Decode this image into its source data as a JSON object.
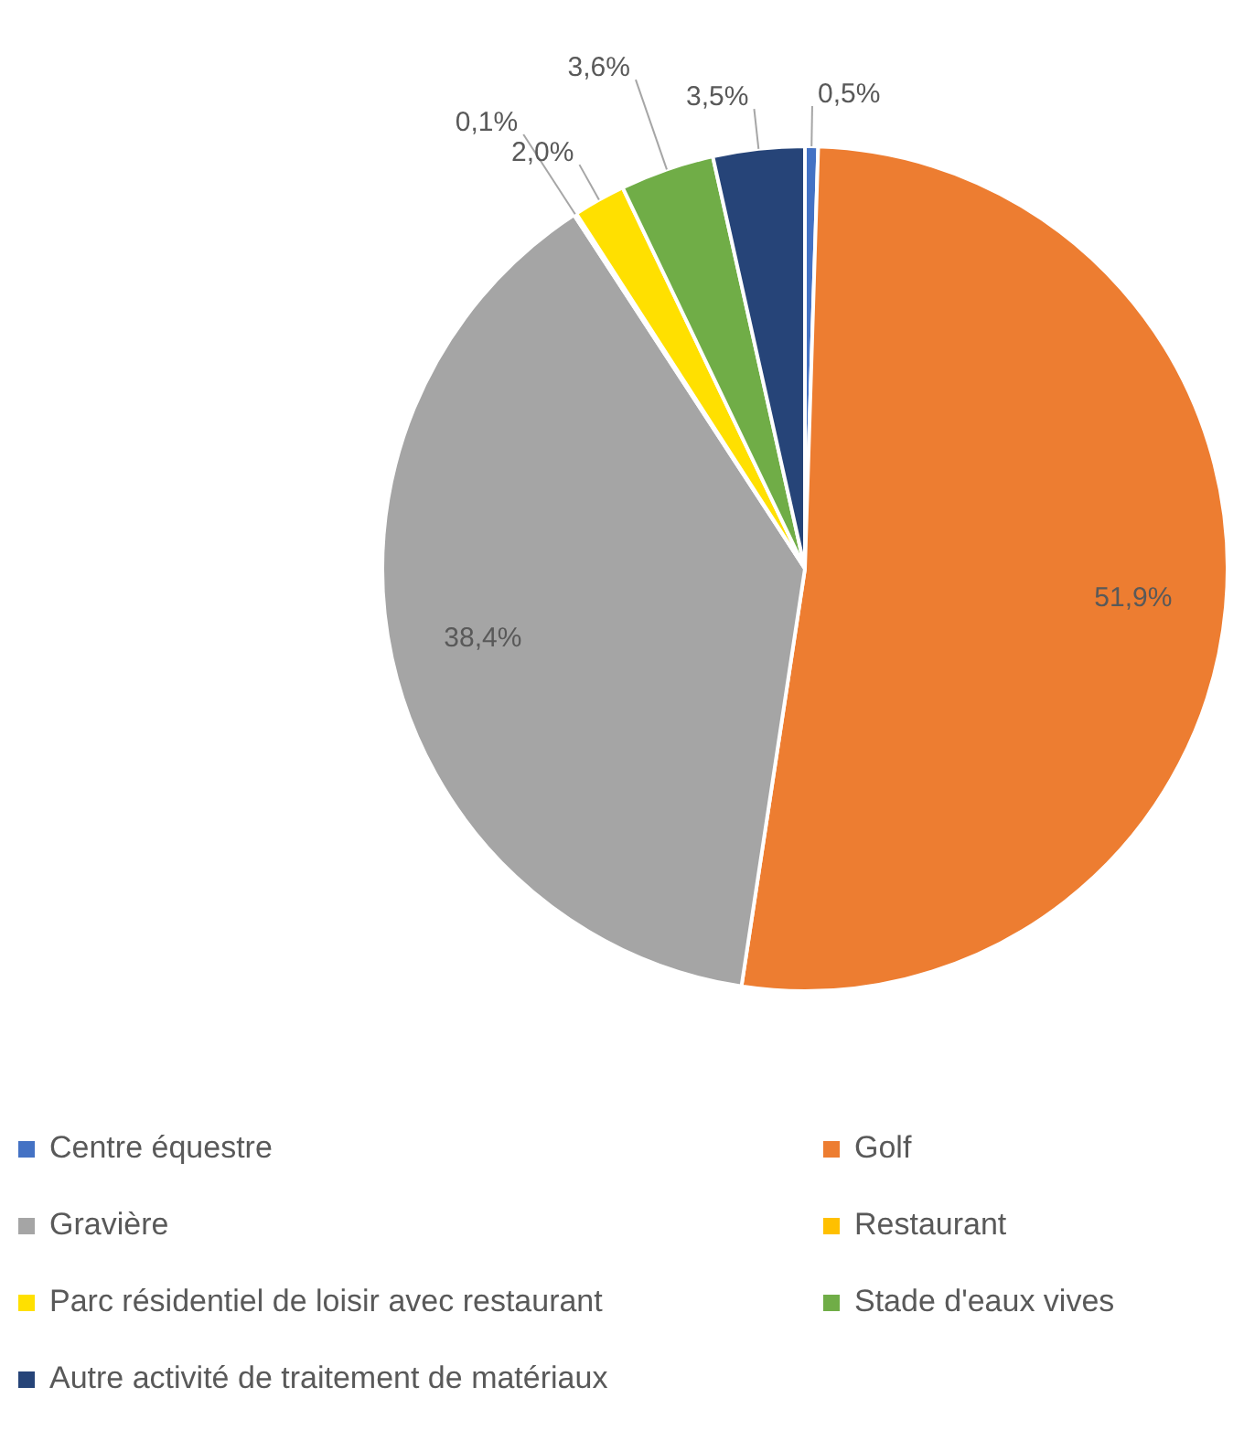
{
  "chart_data": {
    "type": "pie",
    "categories": [
      "Centre équestre",
      "Golf",
      "Gravière",
      "Restaurant",
      "Parc résidentiel de loisir avec restaurant",
      "Stade d'eaux vives",
      "Autre activité de traitement de matériaux"
    ],
    "values": [
      0.5,
      51.9,
      38.4,
      0.1,
      2.0,
      3.6,
      3.5
    ],
    "colors": [
      "#4472c4",
      "#ed7d31",
      "#a5a5a5",
      "#ffc000",
      "#ffe000",
      "#70ad47",
      "#264478"
    ],
    "value_labels": [
      "0,5%",
      "51,9%",
      "38,4%",
      "0,1%",
      "2,0%",
      "3,6%",
      "3,5%"
    ],
    "legend": "bottom"
  }
}
